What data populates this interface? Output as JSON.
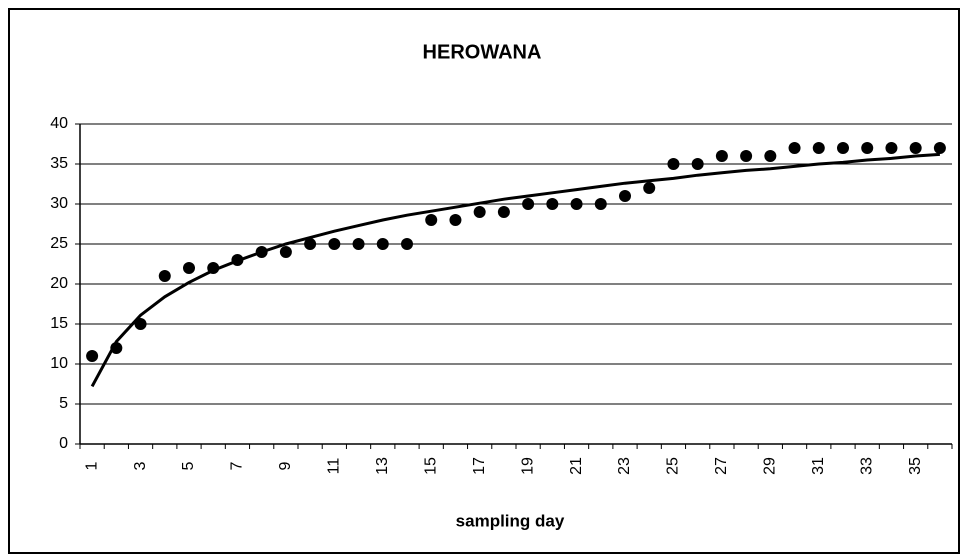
{
  "chart_data": {
    "type": "line",
    "title": "HEROWANA",
    "x_label": "sampling day",
    "categories": [
      1,
      null,
      3,
      null,
      5,
      null,
      7,
      null,
      9,
      null,
      11,
      null,
      13,
      null,
      15,
      null,
      17,
      null,
      19,
      null,
      21,
      null,
      23,
      null,
      25,
      null,
      27,
      null,
      29,
      null,
      31,
      null,
      33,
      null,
      35,
      null
    ],
    "series": [
      {
        "color": "#000000",
        "marker": "circle",
        "line": false,
        "values": [
          11,
          12,
          15,
          21,
          22,
          22,
          23,
          24,
          24,
          25,
          25,
          25,
          25,
          25,
          28,
          28,
          29,
          29,
          30,
          30,
          30,
          30,
          31,
          32,
          35,
          35,
          36,
          36,
          36,
          37,
          37,
          37,
          37,
          37,
          37,
          37
        ]
      },
      {
        "color": "#000000",
        "marker": "none",
        "line": true,
        "values": [
          7.2,
          12.8,
          16.1,
          18.4,
          20.2,
          21.7,
          22.9,
          24.0,
          25.0,
          25.8,
          26.6,
          27.3,
          28.0,
          28.6,
          29.1,
          29.6,
          30.1,
          30.6,
          31.0,
          31.4,
          31.8,
          32.2,
          32.6,
          32.9,
          33.2,
          33.6,
          33.9,
          34.2,
          34.4,
          34.7,
          35.0,
          35.2,
          35.5,
          35.7,
          36.0,
          36.2
        ]
      }
    ],
    "ylim": [
      0,
      40
    ],
    "yticks": [
      0,
      5,
      10,
      15,
      20,
      25,
      30,
      35,
      40
    ],
    "grid": true
  }
}
